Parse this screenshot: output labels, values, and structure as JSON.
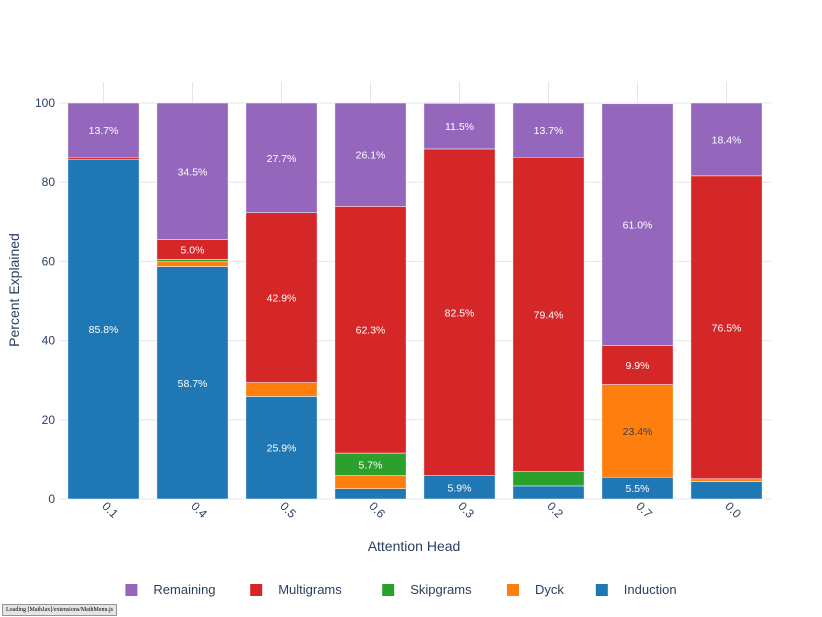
{
  "chart_data": {
    "type": "bar",
    "stacked": true,
    "xlabel": "Attention Head",
    "ylabel": "Percent Explained",
    "ylim": [
      0,
      100
    ],
    "yticks": [
      0,
      20,
      40,
      60,
      80,
      100
    ],
    "grid": true,
    "legend_position": "bottom",
    "categories": [
      "0.1",
      "0.4",
      "0.5",
      "0.6",
      "0.3",
      "0.2",
      "0.7",
      "0.0"
    ],
    "series": [
      {
        "name": "Induction",
        "color": "#1f77b4",
        "values": [
          85.8,
          58.7,
          25.9,
          2.6,
          5.9,
          3.3,
          5.5,
          4.4
        ]
      },
      {
        "name": "Dyck",
        "color": "#ff7f0e",
        "values": [
          0.0,
          1.2,
          3.5,
          3.3,
          0.0,
          0.0,
          23.4,
          0.7
        ]
      },
      {
        "name": "Skipgrams",
        "color": "#2ca02c",
        "values": [
          0.0,
          0.6,
          0.0,
          5.7,
          0.0,
          3.6,
          0.0,
          0.0
        ]
      },
      {
        "name": "Multigrams",
        "color": "#d62728",
        "values": [
          0.5,
          5.0,
          42.9,
          62.3,
          82.5,
          79.4,
          9.9,
          76.5
        ]
      },
      {
        "name": "Remaining",
        "color": "#9467bd",
        "values": [
          13.7,
          34.5,
          27.7,
          26.1,
          11.5,
          13.7,
          61.0,
          18.4
        ]
      }
    ],
    "data_labels": [
      {
        "category": "0.1",
        "series": "Induction",
        "text": "85.8%"
      },
      {
        "category": "0.1",
        "series": "Remaining",
        "text": "13.7%"
      },
      {
        "category": "0.4",
        "series": "Induction",
        "text": "58.7%"
      },
      {
        "category": "0.4",
        "series": "Multigrams",
        "text": "5.0%"
      },
      {
        "category": "0.4",
        "series": "Remaining",
        "text": "34.5%"
      },
      {
        "category": "0.5",
        "series": "Induction",
        "text": "25.9%"
      },
      {
        "category": "0.5",
        "series": "Multigrams",
        "text": "42.9%"
      },
      {
        "category": "0.5",
        "series": "Remaining",
        "text": "27.7%"
      },
      {
        "category": "0.6",
        "series": "Skipgrams",
        "text": "5.7%"
      },
      {
        "category": "0.6",
        "series": "Multigrams",
        "text": "62.3%"
      },
      {
        "category": "0.6",
        "series": "Remaining",
        "text": "26.1%"
      },
      {
        "category": "0.3",
        "series": "Induction",
        "text": "5.9%"
      },
      {
        "category": "0.3",
        "series": "Multigrams",
        "text": "82.5%"
      },
      {
        "category": "0.3",
        "series": "Remaining",
        "text": "11.5%"
      },
      {
        "category": "0.2",
        "series": "Multigrams",
        "text": "79.4%"
      },
      {
        "category": "0.2",
        "series": "Remaining",
        "text": "13.7%"
      },
      {
        "category": "0.7",
        "series": "Induction",
        "text": "5.5%"
      },
      {
        "category": "0.7",
        "series": "Dyck",
        "text": "23.4%"
      },
      {
        "category": "0.7",
        "series": "Multigrams",
        "text": "9.9%"
      },
      {
        "category": "0.7",
        "series": "Remaining",
        "text": "61.0%"
      },
      {
        "category": "0.0",
        "series": "Multigrams",
        "text": "76.5%"
      },
      {
        "category": "0.0",
        "series": "Remaining",
        "text": "18.4%"
      }
    ],
    "legend": [
      "Remaining",
      "Multigrams",
      "Skipgrams",
      "Dyck",
      "Induction"
    ]
  },
  "status_bar": {
    "text": "Loading [MathJax]/extensions/MathMenu.js"
  }
}
